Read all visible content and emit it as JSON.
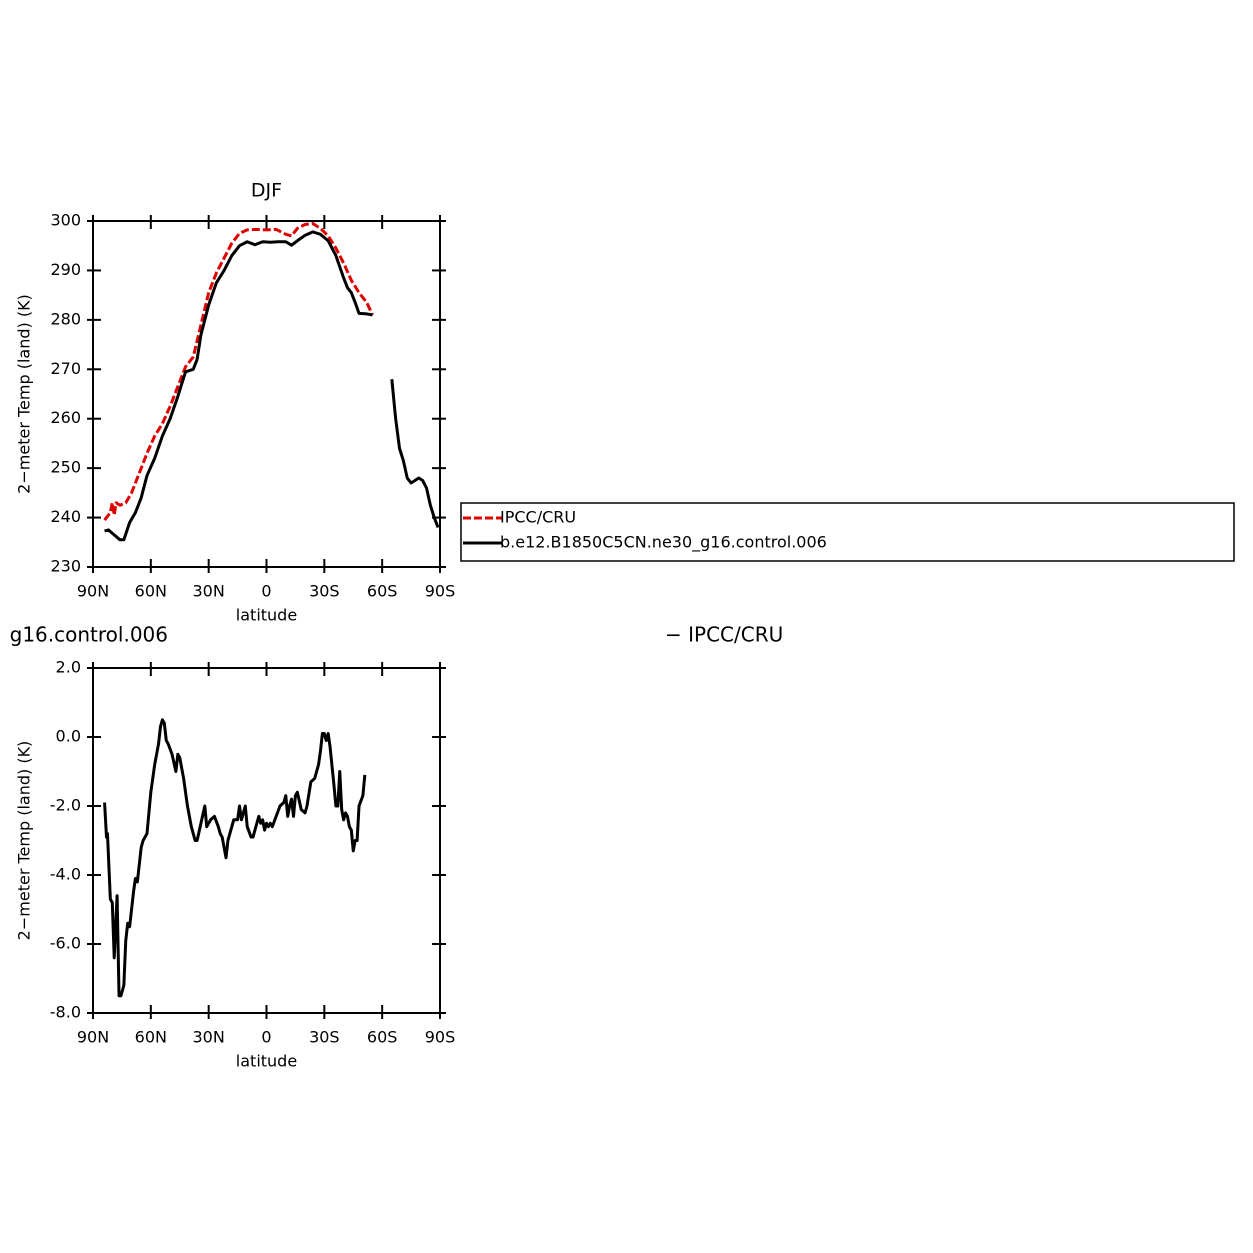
{
  "chart_data": [
    {
      "type": "line",
      "title": "DJF",
      "xlabel": "latitude",
      "ylabel": "2−meter Temp (land) (K)",
      "xlim": [
        90,
        -90
      ],
      "ylim": [
        230,
        300
      ],
      "xticks": [
        {
          "value": 90,
          "label": "90N"
        },
        {
          "value": 60,
          "label": "60N"
        },
        {
          "value": 30,
          "label": "30N"
        },
        {
          "value": 0,
          "label": "0"
        },
        {
          "value": -30,
          "label": "30S"
        },
        {
          "value": -60,
          "label": "60S"
        },
        {
          "value": -90,
          "label": "90S"
        }
      ],
      "yticks": [
        230,
        240,
        250,
        260,
        270,
        280,
        290,
        300
      ],
      "legend": "right",
      "series": [
        {
          "name": "IPCC/CRU",
          "color": "#e00000",
          "linestyle": "dashed",
          "x": [
            84,
            81,
            80,
            79,
            78,
            76,
            73,
            70,
            66,
            62,
            58,
            54,
            50,
            46,
            42,
            38,
            34,
            30,
            26,
            22,
            18,
            14,
            10,
            5,
            0,
            -5,
            -10,
            -13,
            -16,
            -20,
            -24,
            -28,
            -32,
            -36,
            -40,
            -44,
            -48,
            -52,
            -55
          ],
          "values": [
            239.5,
            241,
            243,
            240.5,
            243,
            242.5,
            243,
            245,
            249,
            253,
            256.5,
            259,
            262.5,
            266.5,
            270.5,
            272.5,
            279,
            285.5,
            289.5,
            292.5,
            295.5,
            297.5,
            298.2,
            298.3,
            298.2,
            298.3,
            297.3,
            297,
            298.5,
            299.3,
            299.5,
            298.5,
            297,
            294.5,
            291.5,
            288,
            285.5,
            283.5,
            281
          ]
        },
        {
          "name": "b.e12.B1850C5CN.ne30_g16.control.006",
          "color": "#000000",
          "linestyle": "solid",
          "x": [
            84,
            82,
            79,
            76,
            74,
            71,
            68,
            65,
            62,
            58,
            54,
            50,
            46,
            42,
            38,
            36,
            34,
            30,
            26,
            22,
            18,
            14,
            10,
            6,
            2,
            -2,
            -6,
            -10,
            -13,
            -16,
            -20,
            -24,
            -28,
            -32,
            -36,
            -40,
            -42,
            -44,
            -46,
            -48,
            -52,
            -55,
            -60,
            -65,
            -67,
            -69,
            -71,
            -73,
            -75,
            -77,
            -79,
            -81,
            -83,
            -85,
            -87,
            -89
          ],
          "values": [
            237.3,
            237.5,
            236.5,
            235.5,
            235.5,
            239,
            241,
            244,
            248.5,
            252,
            256.5,
            260,
            264.5,
            269.5,
            270,
            272,
            277,
            283,
            287.5,
            290,
            293,
            295,
            295.8,
            295.2,
            295.8,
            295.7,
            295.8,
            295.8,
            295.1,
            296,
            297.1,
            297.8,
            297.3,
            296,
            293,
            288.5,
            286.5,
            285.5,
            283.5,
            281.3,
            281.2,
            281,
            null,
            268,
            260,
            254,
            251.5,
            248,
            247,
            247.5,
            248,
            247.5,
            246,
            242.5,
            240,
            238
          ]
        }
      ]
    },
    {
      "type": "line",
      "title": [
        "g16.control.006",
        "− IPCC/CRU"
      ],
      "xlabel": "latitude",
      "ylabel": "2−meter Temp (land) (K)",
      "xlim": [
        90,
        -90
      ],
      "ylim": [
        -8,
        2
      ],
      "xticks": [
        {
          "value": 90,
          "label": "90N"
        },
        {
          "value": 60,
          "label": "60N"
        },
        {
          "value": 30,
          "label": "30N"
        },
        {
          "value": 0,
          "label": "0"
        },
        {
          "value": -30,
          "label": "30S"
        },
        {
          "value": -60,
          "label": "60S"
        },
        {
          "value": -90,
          "label": "90S"
        }
      ],
      "yticks": [
        {
          "value": 2,
          "label": "2.0"
        },
        {
          "value": 0,
          "label": "0.0"
        },
        {
          "value": -2,
          "label": "-2.0"
        },
        {
          "value": -4,
          "label": "-4.0"
        },
        {
          "value": -6,
          "label": "-6.0"
        },
        {
          "value": -8,
          "label": "-8.0"
        }
      ],
      "series": [
        {
          "color": "#000000",
          "linestyle": "solid",
          "x": [
            84,
            83,
            82.5,
            81,
            80,
            79,
            77.5,
            76.5,
            75.5,
            74,
            73,
            72,
            71,
            69,
            68,
            67,
            65,
            64,
            62,
            60,
            58,
            56,
            55,
            54,
            53,
            52,
            51,
            49,
            47,
            46,
            45,
            43,
            41,
            39,
            37,
            36,
            34,
            32,
            31,
            29,
            27,
            25,
            24,
            23,
            21,
            20,
            18,
            17,
            15,
            14,
            13,
            12,
            11,
            10,
            8,
            7,
            5,
            4,
            3,
            2,
            1,
            0,
            -1,
            -2,
            -3,
            -5,
            -7,
            -9,
            -10,
            -11,
            -12,
            -13,
            -14,
            -15,
            -16,
            -18,
            -20,
            -21,
            -23,
            -25,
            -27,
            -28,
            -29,
            -30,
            -31,
            -32,
            -33,
            -35,
            -36,
            -37,
            -38,
            -39,
            -40,
            -41,
            -42,
            -43,
            -44,
            -45,
            -46,
            -47,
            -48,
            -50,
            -51
          ],
          "values": [
            -1.9,
            -2.9,
            -2.8,
            -4.7,
            -4.8,
            -6.4,
            -4.6,
            -7.5,
            -7.5,
            -7.2,
            -5.9,
            -5.4,
            -5.5,
            -4.5,
            -4.1,
            -4.2,
            -3.2,
            -3.0,
            -2.8,
            -1.6,
            -0.8,
            -0.2,
            0.3,
            0.5,
            0.4,
            -0.1,
            -0.2,
            -0.5,
            -1.0,
            -0.5,
            -0.6,
            -1.2,
            -2.0,
            -2.6,
            -3.0,
            -3.0,
            -2.5,
            -2.0,
            -2.6,
            -2.4,
            -2.3,
            -2.6,
            -2.8,
            -2.9,
            -3.5,
            -3.0,
            -2.6,
            -2.4,
            -2.4,
            -2.0,
            -2.4,
            -2.2,
            -2.0,
            -2.6,
            -2.9,
            -2.9,
            -2.5,
            -2.3,
            -2.5,
            -2.4,
            -2.7,
            -2.5,
            -2.6,
            -2.5,
            -2.6,
            -2.3,
            -2.0,
            -1.9,
            -1.7,
            -2.3,
            -2.0,
            -1.8,
            -2.3,
            -1.7,
            -1.6,
            -2.1,
            -2.2,
            -2.0,
            -1.3,
            -1.2,
            -0.8,
            -0.4,
            0.1,
            0.1,
            -0.1,
            0.1,
            -0.3,
            -1.4,
            -2.0,
            -2.0,
            -1.0,
            -2.1,
            -2.4,
            -2.2,
            -2.3,
            -2.6,
            -2.7,
            -3.3,
            -3.0,
            -3.0,
            -2.0,
            -1.7,
            -1.1
          ]
        }
      ]
    }
  ]
}
